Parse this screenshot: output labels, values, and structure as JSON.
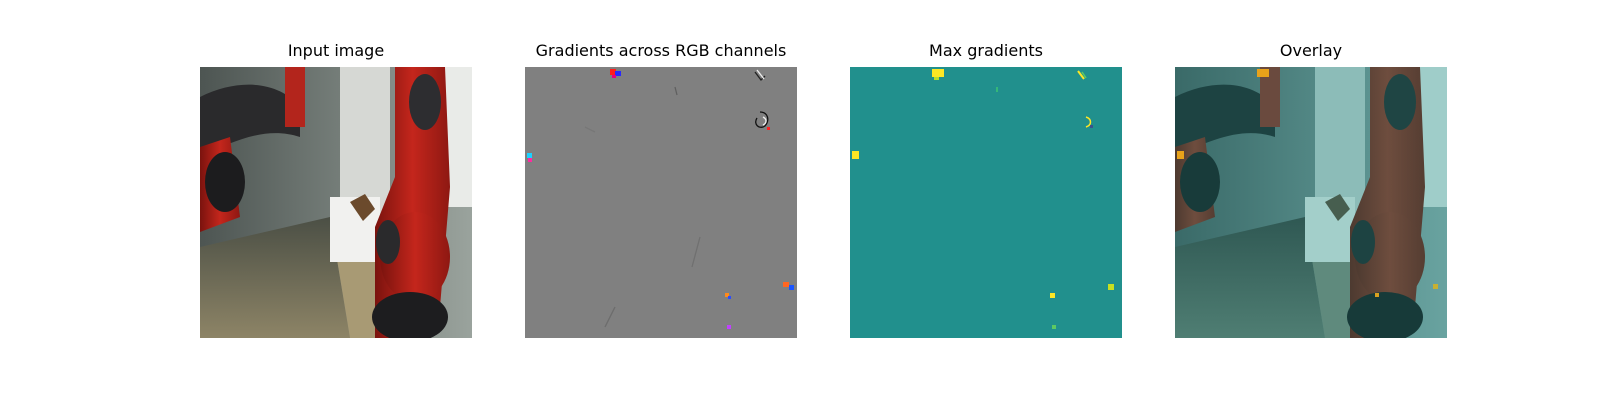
{
  "panels": [
    {
      "title": "Input image",
      "kind": "photo"
    },
    {
      "title": "Gradients across RGB channels",
      "kind": "gradients"
    },
    {
      "title": "Max gradients",
      "kind": "max-gradients"
    },
    {
      "title": "Overlay",
      "kind": "overlay"
    }
  ],
  "colors": {
    "background": "#ffffff",
    "gradient_gray": "#808080",
    "viridis_teal": "#21908d",
    "viridis_yellow": "#fde725",
    "viridis_green": "#5ec962",
    "robot_red": "#b5201a",
    "overlay_tint": "#21908d"
  }
}
